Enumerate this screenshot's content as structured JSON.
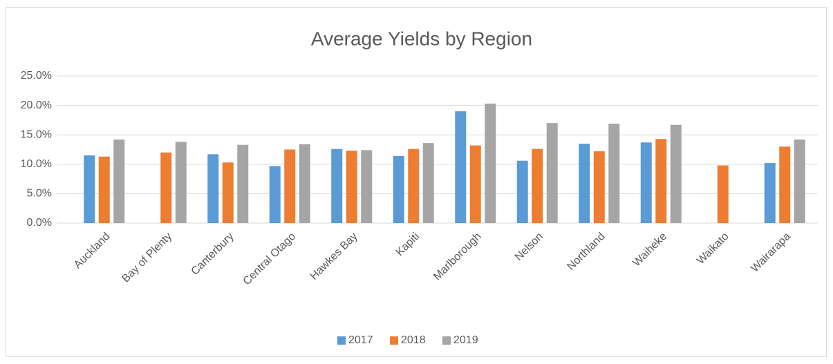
{
  "chart_data": {
    "type": "bar",
    "title": "Average Yields by Region",
    "categories": [
      "Auckland",
      "Bay of Plenty",
      "Canterbury",
      "Central Otago",
      "Hawkes Bay",
      "Kapiti",
      "Marlborough",
      "Nelson",
      "Northland",
      "Waiheke",
      "Waikato",
      "Wairarapa"
    ],
    "series": [
      {
        "name": "2017",
        "color": "#5b9bd5",
        "values": [
          11.5,
          null,
          11.7,
          9.7,
          12.6,
          11.4,
          19.0,
          10.6,
          13.5,
          13.7,
          null,
          10.2
        ]
      },
      {
        "name": "2018",
        "color": "#ed7d31",
        "values": [
          11.3,
          12.0,
          10.3,
          12.5,
          12.3,
          12.6,
          13.2,
          12.6,
          12.2,
          14.3,
          9.8,
          13.0
        ]
      },
      {
        "name": "2019",
        "color": "#a5a5a5",
        "values": [
          14.2,
          13.8,
          13.3,
          13.4,
          12.4,
          13.6,
          20.3,
          17.0,
          16.9,
          16.7,
          null,
          14.2
        ]
      }
    ],
    "ylim": [
      0,
      25
    ],
    "yticks": [
      {
        "value": 0,
        "label": "0.0%"
      },
      {
        "value": 5,
        "label": "5.0%"
      },
      {
        "value": 10,
        "label": "10.0%"
      },
      {
        "value": 15,
        "label": "15.0%"
      },
      {
        "value": 20,
        "label": "20.0%"
      },
      {
        "value": 25,
        "label": "25.0%"
      }
    ],
    "grid": true,
    "legend": "bottom"
  }
}
